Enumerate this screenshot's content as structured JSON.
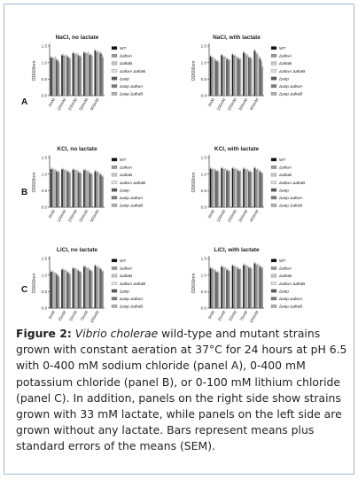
{
  "figure": {
    "panel_letters": [
      "A",
      "B",
      "C"
    ],
    "legend_entries": [
      "WT",
      "ΔaltaA",
      "ΔaltaB",
      "ΔaltaA ΔaltaB",
      "Δasp",
      "Δasp ΔaltaA",
      "Δasp ΔaltaB"
    ],
    "bar_colors": [
      "#111111",
      "#9a9a9a",
      "#c4c4c4",
      "#e2e2e2",
      "#5a5a5a",
      "#7c7c7c",
      "#b0b0b0"
    ]
  },
  "chart_data": [
    {
      "type": "bar",
      "panel": "A",
      "title": "NaCl, no lactate",
      "ylabel": "OD600nm",
      "ylim": [
        0,
        1.5
      ],
      "yticks": [
        "0.0",
        "0.5",
        "1.0",
        "1.5"
      ],
      "categories": [
        "0mM",
        "100mM",
        "200mM",
        "300mM",
        "400mM"
      ],
      "series": [
        {
          "name": "WT",
          "values": [
            1.15,
            1.22,
            1.28,
            1.3,
            1.36
          ]
        },
        {
          "name": "ΔaltaA",
          "values": [
            1.12,
            1.2,
            1.26,
            1.27,
            1.32
          ]
        },
        {
          "name": "ΔaltaB",
          "values": [
            1.1,
            1.18,
            1.22,
            1.25,
            1.3
          ]
        },
        {
          "name": "ΔaltaA ΔaltaB",
          "values": [
            1.13,
            1.19,
            1.24,
            1.28,
            1.29
          ]
        },
        {
          "name": "Δasp",
          "values": [
            1.08,
            1.17,
            1.21,
            1.23,
            1.27
          ]
        },
        {
          "name": "Δasp ΔaltaA",
          "values": [
            1.05,
            1.14,
            1.18,
            1.22,
            1.25
          ]
        },
        {
          "name": "Δasp ΔaltaB",
          "values": [
            0.98,
            1.1,
            1.16,
            1.2,
            1.13
          ]
        }
      ]
    },
    {
      "type": "bar",
      "panel": "A",
      "title": "NaCl, with lactate",
      "ylabel": "OD600nm",
      "ylim": [
        0,
        1.5
      ],
      "yticks": [
        "0.0",
        "0.5",
        "1.0",
        "1.5"
      ],
      "categories": [
        "0mM",
        "100mM",
        "200mM",
        "300mM",
        "400mM"
      ],
      "series": [
        {
          "name": "WT",
          "values": [
            1.18,
            1.22,
            1.24,
            1.3,
            1.36
          ]
        },
        {
          "name": "ΔaltaA",
          "values": [
            1.14,
            1.18,
            1.2,
            1.26,
            1.3
          ]
        },
        {
          "name": "ΔaltaB",
          "values": [
            1.1,
            1.15,
            1.18,
            1.22,
            1.24
          ]
        },
        {
          "name": "ΔaltaA ΔaltaB",
          "values": [
            1.08,
            1.13,
            1.15,
            1.2,
            1.18
          ]
        },
        {
          "name": "Δasp",
          "values": [
            1.05,
            1.1,
            1.12,
            1.15,
            1.12
          ]
        },
        {
          "name": "Δasp ΔaltaA",
          "values": [
            1.03,
            1.08,
            1.1,
            1.13,
            1.05
          ]
        },
        {
          "name": "Δasp ΔaltaB",
          "values": [
            1.0,
            1.05,
            1.08,
            1.1,
            0.85
          ]
        }
      ]
    },
    {
      "type": "bar",
      "panel": "B",
      "title": "KCl, no lactate",
      "ylabel": "OD600nm",
      "ylim": [
        0,
        1.5
      ],
      "yticks": [
        "0.0",
        "0.5",
        "1.0",
        "1.5"
      ],
      "categories": [
        "0mM",
        "100mM",
        "200mM",
        "300mM",
        "400mM"
      ],
      "series": [
        {
          "name": "WT",
          "values": [
            1.15,
            1.14,
            1.13,
            1.12,
            1.08
          ]
        },
        {
          "name": "ΔaltaA",
          "values": [
            1.13,
            1.12,
            1.11,
            1.1,
            1.06
          ]
        },
        {
          "name": "ΔaltaB",
          "values": [
            1.12,
            1.1,
            1.09,
            1.08,
            1.04
          ]
        },
        {
          "name": "ΔaltaA ΔaltaB",
          "values": [
            1.1,
            1.09,
            1.08,
            1.06,
            1.0
          ]
        },
        {
          "name": "Δasp",
          "values": [
            1.08,
            1.07,
            1.05,
            1.03,
            0.98
          ]
        },
        {
          "name": "Δasp ΔaltaA",
          "values": [
            1.06,
            1.05,
            1.03,
            1.0,
            0.95
          ]
        },
        {
          "name": "Δasp ΔaltaB",
          "values": [
            1.04,
            1.02,
            1.0,
            0.98,
            0.9
          ]
        }
      ]
    },
    {
      "type": "bar",
      "panel": "B",
      "title": "KCl, with lactate",
      "ylabel": "OD600nm",
      "ylim": [
        0,
        1.5
      ],
      "yticks": [
        "0.0",
        "0.5",
        "1.0",
        "1.5"
      ],
      "categories": [
        "0mM",
        "100mM",
        "200mM",
        "300mM",
        "400mM"
      ],
      "series": [
        {
          "name": "WT",
          "values": [
            1.16,
            1.17,
            1.17,
            1.16,
            1.18
          ]
        },
        {
          "name": "ΔaltaA",
          "values": [
            1.14,
            1.15,
            1.15,
            1.14,
            1.15
          ]
        },
        {
          "name": "ΔaltaB",
          "values": [
            1.12,
            1.13,
            1.13,
            1.12,
            1.12
          ]
        },
        {
          "name": "ΔaltaA ΔaltaB",
          "values": [
            1.11,
            1.12,
            1.12,
            1.1,
            1.1
          ]
        },
        {
          "name": "Δasp",
          "values": [
            1.1,
            1.1,
            1.1,
            1.08,
            1.07
          ]
        },
        {
          "name": "Δasp ΔaltaA",
          "values": [
            1.08,
            1.09,
            1.08,
            1.06,
            1.04
          ]
        },
        {
          "name": "Δasp ΔaltaB",
          "values": [
            1.06,
            1.07,
            1.06,
            1.04,
            1.0
          ]
        }
      ]
    },
    {
      "type": "bar",
      "panel": "C",
      "title": "LiCl, no lactate",
      "ylabel": "OD600nm",
      "ylim": [
        0,
        1.5
      ],
      "yticks": [
        "0.0",
        "0.5",
        "1.0",
        "1.5"
      ],
      "categories": [
        "0mM",
        "25mM",
        "50mM",
        "75mM",
        "100mM"
      ],
      "series": [
        {
          "name": "WT",
          "values": [
            1.1,
            1.16,
            1.2,
            1.25,
            1.28
          ]
        },
        {
          "name": "ΔaltaA",
          "values": [
            1.08,
            1.14,
            1.18,
            1.23,
            1.25
          ]
        },
        {
          "name": "ΔaltaB",
          "values": [
            1.06,
            1.12,
            1.16,
            1.2,
            1.22
          ]
        },
        {
          "name": "ΔaltaA ΔaltaB",
          "values": [
            1.04,
            1.1,
            1.14,
            1.18,
            1.2
          ]
        },
        {
          "name": "Δasp",
          "values": [
            1.02,
            1.08,
            1.12,
            1.16,
            1.18
          ]
        },
        {
          "name": "Δasp ΔaltaA",
          "values": [
            0.98,
            1.05,
            1.09,
            1.12,
            1.14
          ]
        },
        {
          "name": "Δasp ΔaltaB",
          "values": [
            0.92,
            1.0,
            1.05,
            1.1,
            1.08
          ]
        }
      ]
    },
    {
      "type": "bar",
      "panel": "C",
      "title": "LiCl, with lactate",
      "ylabel": "OD600nm",
      "ylim": [
        0,
        1.5
      ],
      "yticks": [
        "0.0",
        "0.5",
        "1.0",
        "1.5"
      ],
      "categories": [
        "0mM",
        "25mM",
        "50mM",
        "75mM",
        "100mM"
      ],
      "series": [
        {
          "name": "WT",
          "values": [
            1.2,
            1.25,
            1.28,
            1.3,
            1.35
          ]
        },
        {
          "name": "ΔaltaA",
          "values": [
            1.18,
            1.22,
            1.25,
            1.28,
            1.32
          ]
        },
        {
          "name": "ΔaltaB",
          "values": [
            1.15,
            1.2,
            1.23,
            1.26,
            1.3
          ]
        },
        {
          "name": "ΔaltaA ΔaltaB",
          "values": [
            1.13,
            1.18,
            1.21,
            1.24,
            1.27
          ]
        },
        {
          "name": "Δasp",
          "values": [
            1.1,
            1.15,
            1.19,
            1.22,
            1.25
          ]
        },
        {
          "name": "Δasp ΔaltaA",
          "values": [
            1.08,
            1.13,
            1.17,
            1.2,
            1.22
          ]
        },
        {
          "name": "Δasp ΔaltaB",
          "values": [
            1.05,
            1.1,
            1.15,
            1.18,
            1.2
          ]
        }
      ]
    }
  ],
  "caption": {
    "label": "Figure 2:",
    "species": "Vibrio cholerae",
    "text": " wild-type and mutant strains grown with constant aeration at 37°C for 24 hours at pH 6.5 with 0-400 mM sodium chloride (panel A), 0-400 mM potassium chloride (panel B), or 0-100 mM lithium chloride (panel C). In addition, panels on the right side show strains grown with 33 mM lactate, while panels on the left side are grown without any lactate. Bars represent means plus standard errors of the means (SEM)."
  }
}
